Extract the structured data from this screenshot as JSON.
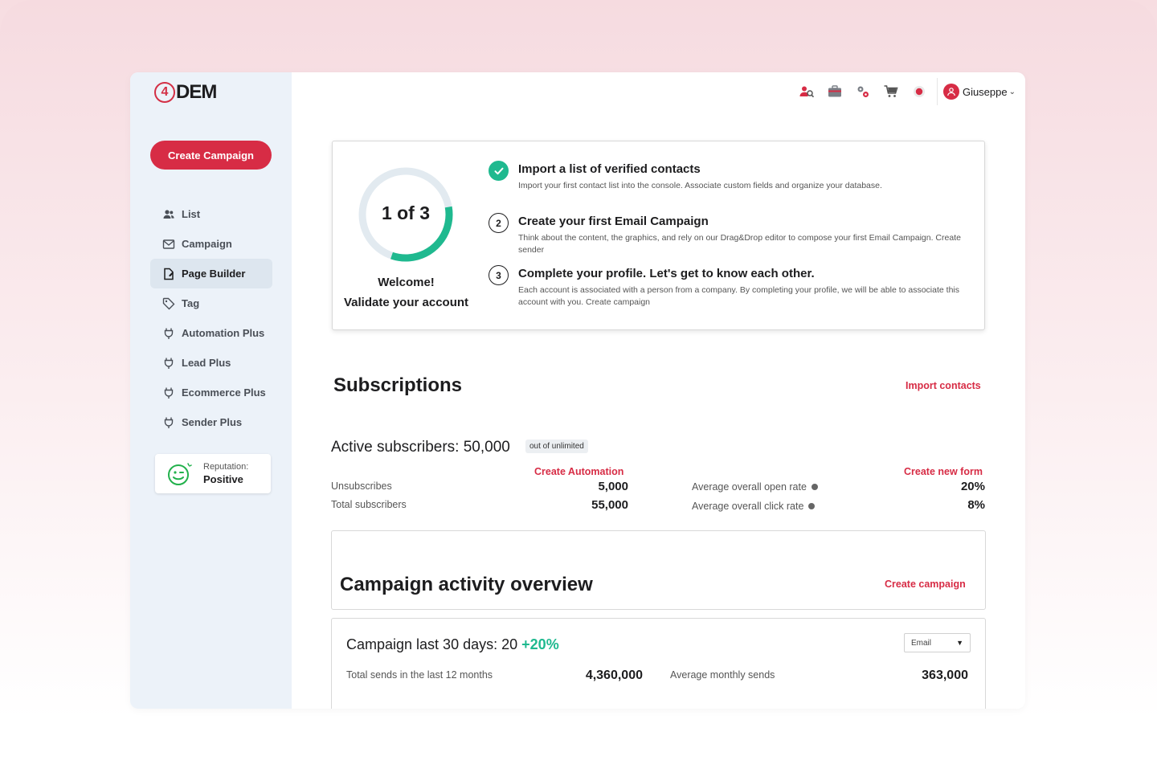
{
  "brand": {
    "logo_text": "DEM",
    "logo_mark": "4",
    "accent": "#d72c45",
    "success": "#1fb98f"
  },
  "sidebar": {
    "create_button": "Create Campaign",
    "items": [
      {
        "label": "List",
        "icon": "users-icon"
      },
      {
        "label": "Campaign",
        "icon": "envelope-icon"
      },
      {
        "label": "Page Builder",
        "icon": "page-builder-icon"
      },
      {
        "label": "Tag",
        "icon": "tag-icon"
      },
      {
        "label": "Automation Plus",
        "icon": "plug-icon"
      },
      {
        "label": "Lead Plus",
        "icon": "plug-icon"
      },
      {
        "label": "Ecommerce Plus",
        "icon": "plug-icon"
      },
      {
        "label": "Sender Plus",
        "icon": "plug-icon"
      }
    ],
    "active_item": "Page Builder",
    "reputation": {
      "label": "Reputation:",
      "value": "Positive",
      "icon": "smiley-wink-icon"
    }
  },
  "topbar": {
    "icons": [
      "user-search-icon",
      "briefcase-icon",
      "settings-gears-icon",
      "cart-icon",
      "notification-icon"
    ],
    "user_name": "Giuseppe"
  },
  "onboarding": {
    "progress_label": "1 of 3",
    "progress_fraction": 0.33,
    "welcome_line1": "Welcome!",
    "welcome_line2": "Validate your account",
    "steps": [
      {
        "num": "",
        "done": true,
        "title": "Import a list of verified contacts",
        "desc": "Import your first contact list into the console. Associate custom fields and organize your database."
      },
      {
        "num": "2",
        "done": false,
        "title": "Create your first Email Campaign",
        "desc": "Think about the content, the graphics, and rely on our Drag&Drop editor to compose your first Email Campaign. Create sender"
      },
      {
        "num": "3",
        "done": false,
        "title": "Complete your profile. Let's get to know each other.",
        "desc": "Each account is associated with a person from a company. By completing your profile, we will be able to associate this account with you. Create campaign"
      }
    ]
  },
  "subscriptions": {
    "title": "Subscriptions",
    "import_link": "Import contacts",
    "active_label": "Active subscribers: 50,000",
    "active_pill": "out of unlimited",
    "create_automation": "Create Automation",
    "create_form": "Create new form",
    "unsubscribes_label": "Unsubscribes",
    "unsubscribes_value": "5,000",
    "total_label": "Total subscribers",
    "total_value": "55,000",
    "open_rate_label": "Average overall open rate",
    "open_rate_value": "20%",
    "click_rate_label": "Average overall click rate",
    "click_rate_value": "8%"
  },
  "overview": {
    "title": "Campaign activity overview",
    "create_link": "Create campaign"
  },
  "campaigns": {
    "title": "Campaign last 30 days: 20",
    "delta": "+20%",
    "select_value": "Email",
    "total_sends_label": "Total sends in the last 12 months",
    "total_sends_value": "4,360,000",
    "avg_sends_label": "Average monthly sends",
    "avg_sends_value": "363,000"
  }
}
